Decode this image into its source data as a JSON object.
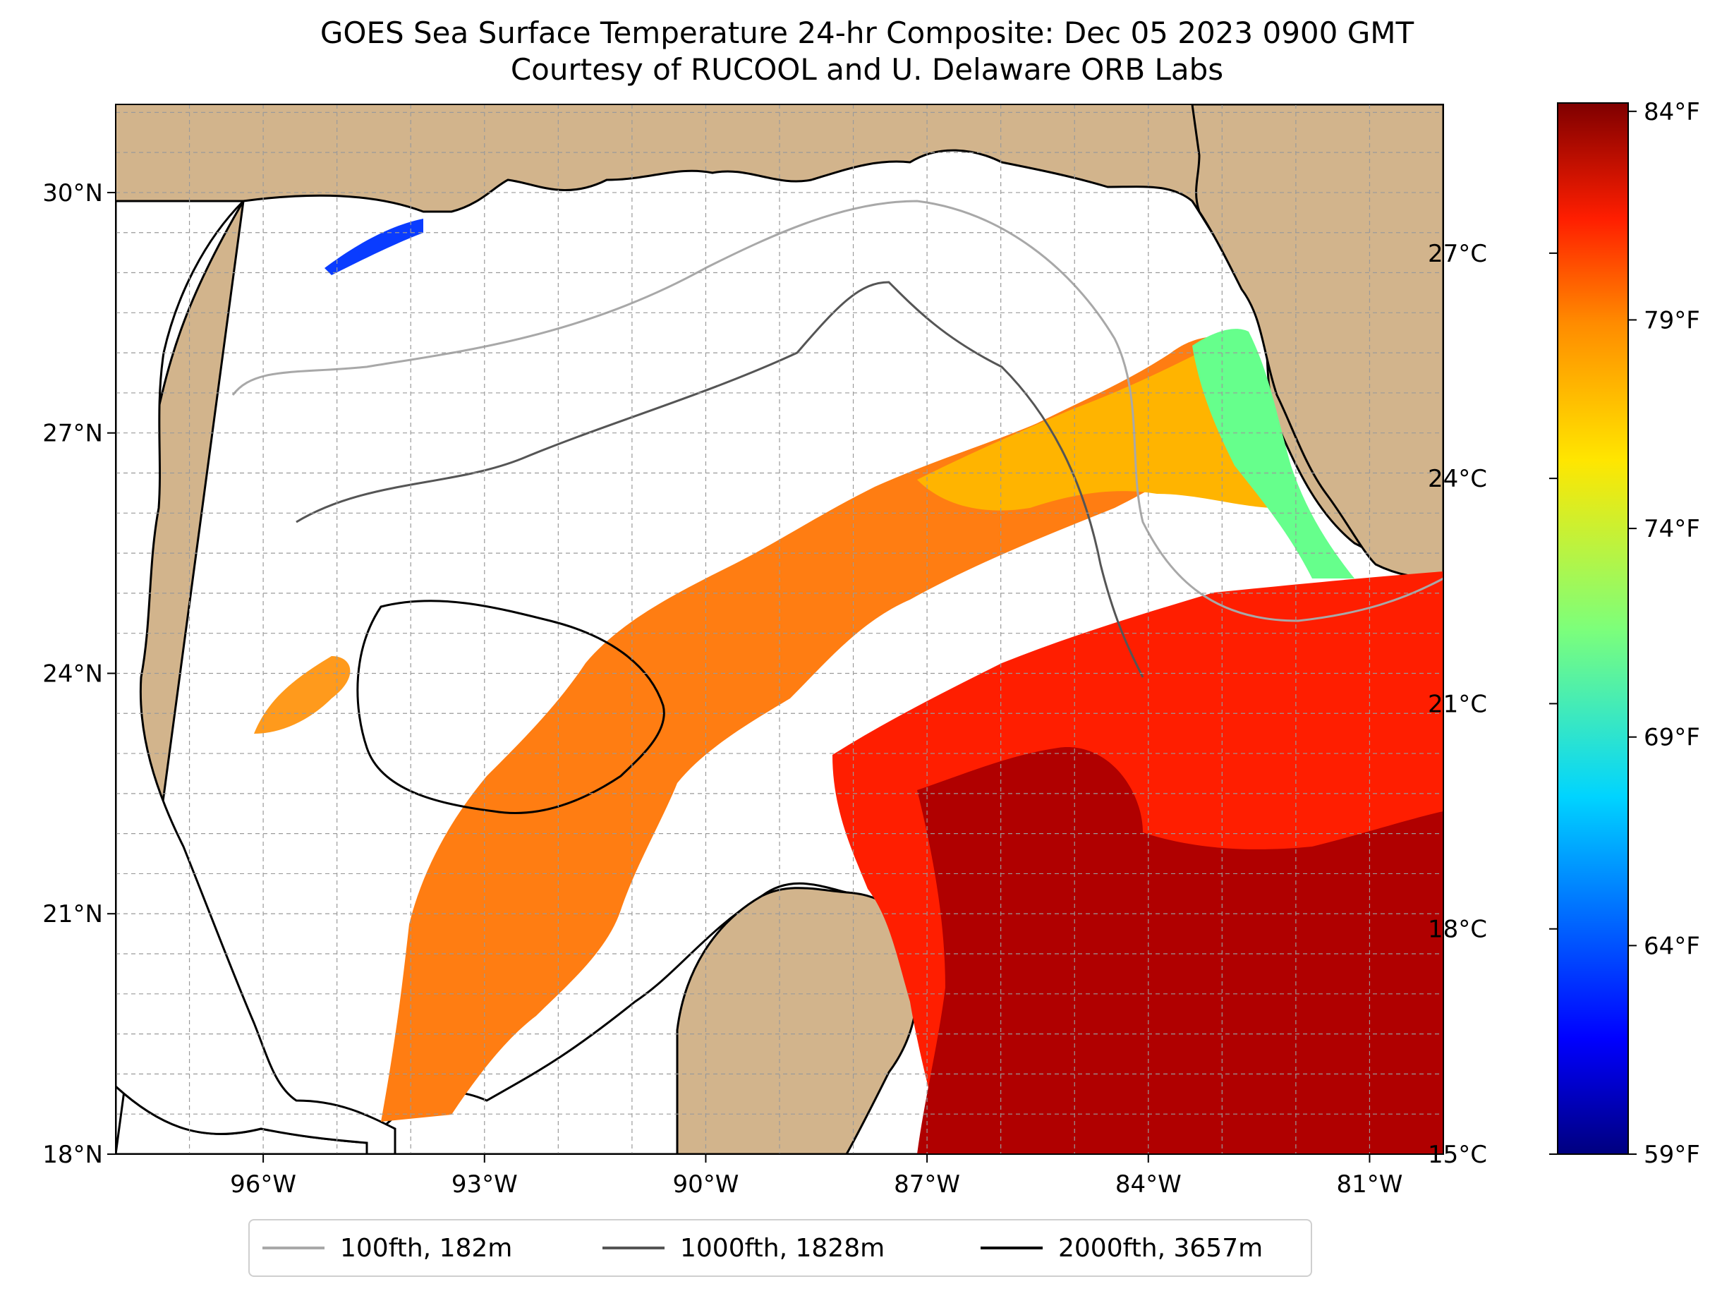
{
  "title": {
    "line1": "GOES Sea Surface Temperature 24-hr Composite: Dec 05 2023 0900 GMT",
    "line2": "Courtesy of RUCOOL and U. Delaware ORB Labs"
  },
  "map": {
    "lon_range": [
      -98.0,
      -80.0
    ],
    "lat_range": [
      18.0,
      31.1
    ],
    "lat_ticks": [
      {
        "value": 18,
        "label": "18°N"
      },
      {
        "value": 21,
        "label": "21°N"
      },
      {
        "value": 24,
        "label": "24°N"
      },
      {
        "value": 27,
        "label": "27°N"
      },
      {
        "value": 30,
        "label": "30°N"
      }
    ],
    "lon_ticks": [
      {
        "value": -96,
        "label": "96°W"
      },
      {
        "value": -93,
        "label": "93°W"
      },
      {
        "value": -90,
        "label": "90°W"
      },
      {
        "value": -87,
        "label": "87°W"
      },
      {
        "value": -84,
        "label": "84°W"
      },
      {
        "value": -81,
        "label": "81°W"
      }
    ],
    "gridlines": true,
    "land_color": "#d2b48c",
    "lake_color": "#9db9e6",
    "cloud_mask_color": "#ffffff"
  },
  "colorbar": {
    "colormap": "jet",
    "celsius_range": [
      15,
      29
    ],
    "celsius_ticks": [
      {
        "value": 15,
        "label": "15°C"
      },
      {
        "value": 18,
        "label": "18°C"
      },
      {
        "value": 21,
        "label": "21°C"
      },
      {
        "value": 24,
        "label": "24°C"
      },
      {
        "value": 27,
        "label": "27°C"
      }
    ],
    "fahrenheit_ticks": [
      {
        "value": 59,
        "label": "59°F"
      },
      {
        "value": 64,
        "label": "64°F"
      },
      {
        "value": 69,
        "label": "69°F"
      },
      {
        "value": 74,
        "label": "74°F"
      },
      {
        "value": 79,
        "label": "79°F"
      },
      {
        "value": 84,
        "label": "84°F"
      }
    ]
  },
  "legend": {
    "placement": "bottom-center",
    "items": [
      {
        "label": "100fth, 182m",
        "color": "#a8a8a8"
      },
      {
        "label": "1000fth, 1828m",
        "color": "#555555"
      },
      {
        "label": "2000fth, 3657m",
        "color": "#000000"
      }
    ]
  }
}
